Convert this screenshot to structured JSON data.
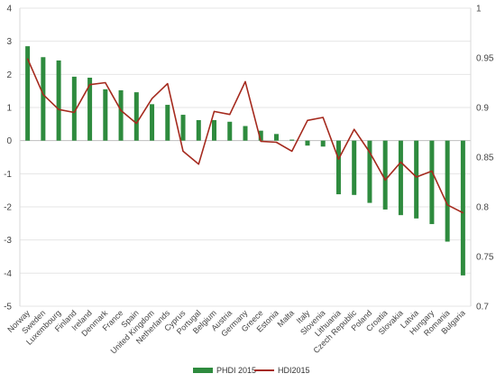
{
  "chart_data": {
    "type": "bar",
    "categories": [
      "Norway",
      "Sweden",
      "Luxembourg",
      "Finland",
      "Ireland",
      "Denmark",
      "France",
      "Spain",
      "United Kingdom",
      "Netherlands",
      "Cyprus",
      "Portugal",
      "Belgium",
      "Austria",
      "Germany",
      "Greece",
      "Estonia",
      "Malta",
      "Italy",
      "Slovenia",
      "Lithuania",
      "Czech Republic",
      "Poland",
      "Croatia",
      "Slovakia",
      "Latvia",
      "Hungary",
      "Romania",
      "Bulgaria"
    ],
    "series": [
      {
        "name": "PHDI 2015",
        "type": "bar",
        "axis": "left",
        "color": "#2e8b3e",
        "values": [
          2.85,
          2.52,
          2.42,
          1.93,
          1.9,
          1.55,
          1.52,
          1.46,
          1.1,
          1.08,
          0.78,
          0.62,
          0.62,
          0.57,
          0.44,
          0.3,
          0.2,
          0.03,
          -0.15,
          -0.18,
          -1.62,
          -1.64,
          -1.88,
          -2.08,
          -2.25,
          -2.35,
          -2.52,
          -3.05,
          -4.07
        ]
      },
      {
        "name": "HDI2015",
        "type": "line",
        "axis": "right",
        "color": "#a52a1e",
        "values": [
          0.949,
          0.913,
          0.898,
          0.895,
          0.923,
          0.925,
          0.897,
          0.884,
          0.909,
          0.924,
          0.856,
          0.843,
          0.896,
          0.893,
          0.926,
          0.866,
          0.865,
          0.856,
          0.887,
          0.89,
          0.848,
          0.878,
          0.855,
          0.827,
          0.845,
          0.83,
          0.836,
          0.802,
          0.794
        ]
      }
    ],
    "y_left": {
      "ylim": [
        -5,
        4
      ],
      "ticks": [
        "4",
        "3",
        "2",
        "1",
        "0",
        "-1",
        "-2",
        "-3",
        "-4",
        "-5"
      ]
    },
    "y_right": {
      "ylim": [
        0.7,
        1.0
      ],
      "ticks": [
        "1",
        "0.95",
        "0.9",
        "0.85",
        "0.8",
        "0.75",
        "0.7"
      ]
    },
    "grid": true,
    "legend_position": "bottom",
    "legend": [
      "PHDI 2015",
      "HDI2015"
    ]
  }
}
